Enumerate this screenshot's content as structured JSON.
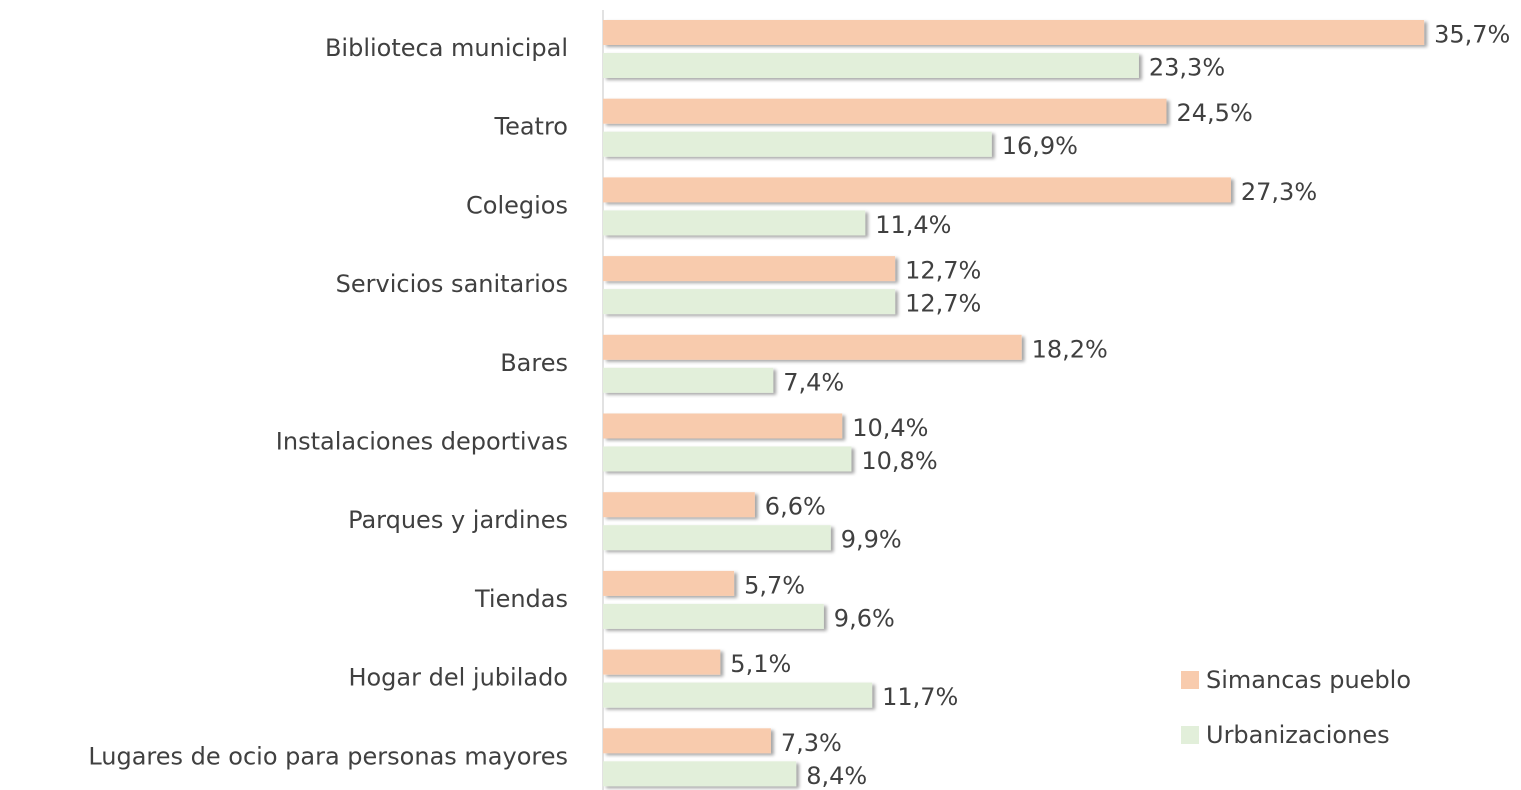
{
  "chart_data": {
    "type": "bar",
    "orientation": "horizontal",
    "categories": [
      "Biblioteca municipal",
      "Teatro",
      "Colegios",
      "Servicios sanitarios",
      "Bares",
      "Instalaciones deportivas",
      "Parques y jardines",
      "Tiendas",
      "Hogar del jubilado",
      "Lugares de ocio para personas mayores"
    ],
    "series": [
      {
        "name": "Simancas pueblo",
        "color": "#f8cbad",
        "values": [
          35.7,
          24.5,
          27.3,
          12.7,
          18.2,
          10.4,
          6.6,
          5.7,
          5.1,
          7.3
        ],
        "value_labels": [
          "35,7%",
          "24,5%",
          "27,3%",
          "12,7%",
          "18,2%",
          "10,4%",
          "6,6%",
          "5,7%",
          "5,1%",
          "7,3%"
        ]
      },
      {
        "name": "Urbanizaciones",
        "color": "#e2efda",
        "values": [
          23.3,
          16.9,
          11.4,
          12.7,
          7.4,
          10.8,
          9.9,
          9.6,
          11.7,
          8.4
        ],
        "value_labels": [
          "23,3%",
          "16,9%",
          "11,4%",
          "12,7%",
          "7,4%",
          "10,8%",
          "9,9%",
          "9,6%",
          "11,7%",
          "8,4%"
        ]
      }
    ],
    "xlim": [
      0,
      40
    ],
    "legend": "bottom-right"
  }
}
